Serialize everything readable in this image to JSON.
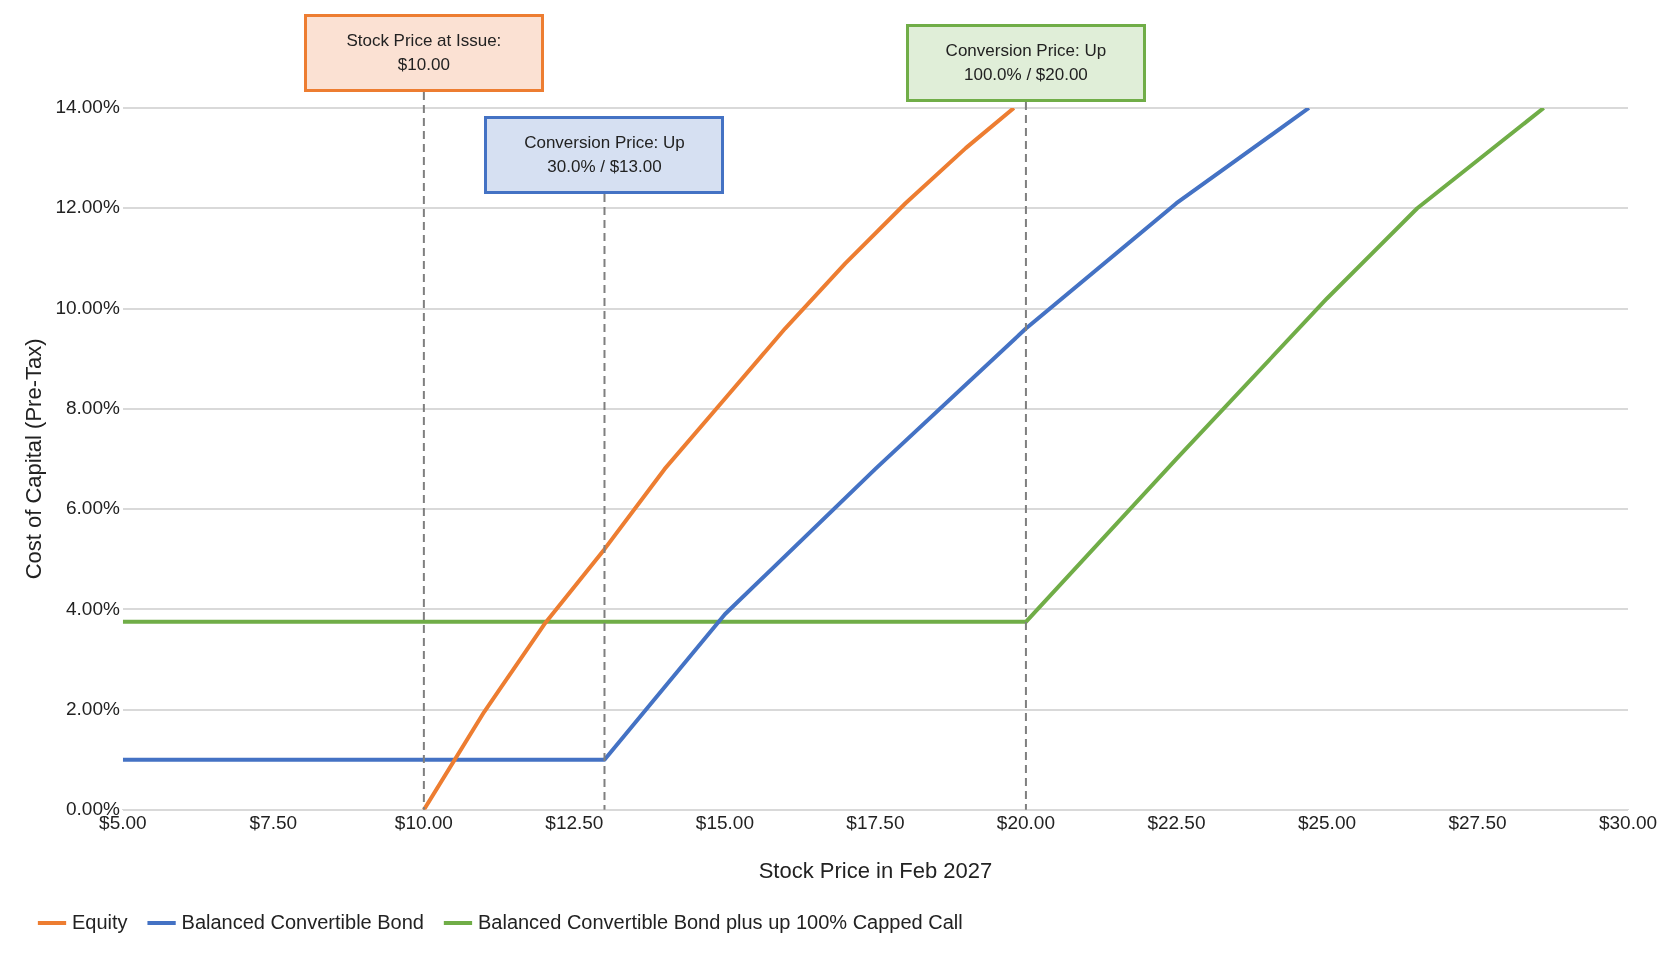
{
  "chart_data": {
    "type": "line",
    "xlabel": "Stock Price in Feb 2027",
    "ylabel": "Cost of Capital (Pre-Tax)",
    "xlim": [
      5,
      30
    ],
    "ylim": [
      0,
      14
    ],
    "xticks": [
      {
        "value": 5,
        "label": "$5.00"
      },
      {
        "value": 7.5,
        "label": "$7.50"
      },
      {
        "value": 10,
        "label": "$10.00"
      },
      {
        "value": 12.5,
        "label": "$12.50"
      },
      {
        "value": 15,
        "label": "$15.00"
      },
      {
        "value": 17.5,
        "label": "$17.50"
      },
      {
        "value": 20,
        "label": "$20.00"
      },
      {
        "value": 22.5,
        "label": "$22.50"
      },
      {
        "value": 25,
        "label": "$25.00"
      },
      {
        "value": 27.5,
        "label": "$27.50"
      },
      {
        "value": 30,
        "label": "$30.00"
      }
    ],
    "yticks": [
      {
        "value": 0,
        "label": "0.00%"
      },
      {
        "value": 2,
        "label": "2.00%"
      },
      {
        "value": 4,
        "label": "4.00%"
      },
      {
        "value": 6,
        "label": "6.00%"
      },
      {
        "value": 8,
        "label": "8.00%"
      },
      {
        "value": 10,
        "label": "10.00%"
      },
      {
        "value": 12,
        "label": "12.00%"
      },
      {
        "value": 14,
        "label": "14.00%"
      }
    ],
    "grid": "y",
    "legend": "bottom",
    "marker": "none",
    "line_style": "solid",
    "series": [
      {
        "name": "Equity",
        "color": "#ed7d31",
        "x": [
          10,
          11,
          12,
          13,
          14,
          15,
          16,
          17,
          18,
          19,
          19.8
        ],
        "values": [
          0,
          1.95,
          3.7,
          5.2,
          6.8,
          8.2,
          9.6,
          10.9,
          12.1,
          13.2,
          14
        ]
      },
      {
        "name": "Balanced Convertible Bond",
        "color": "#4472c4",
        "x": [
          5,
          13,
          15,
          17.5,
          20,
          22.5,
          24.7
        ],
        "values": [
          1,
          1,
          3.9,
          6.8,
          9.6,
          12.1,
          14
        ]
      },
      {
        "name": "Balanced Convertible Bond plus up 100% Capped Call",
        "color": "#70ad47",
        "x": [
          5,
          20,
          22.5,
          25,
          26.5,
          28.6
        ],
        "values": [
          3.75,
          3.75,
          7.0,
          10.2,
          12.0,
          14
        ]
      }
    ],
    "ref_lines": [
      {
        "axis": "x",
        "value": 10,
        "label": "Stock Price at Issue: $10.00",
        "color": "#7f7f7f",
        "line_style": "dashed"
      },
      {
        "axis": "x",
        "value": 13,
        "label": "Conversion Price: Up 30.0% / $13.00",
        "color": "#7f7f7f",
        "line_style": "dashed"
      },
      {
        "axis": "x",
        "value": 20,
        "label": "Conversion Price: Up 100.0% / $20.00",
        "color": "#7f7f7f",
        "line_style": "dashed"
      }
    ]
  }
}
